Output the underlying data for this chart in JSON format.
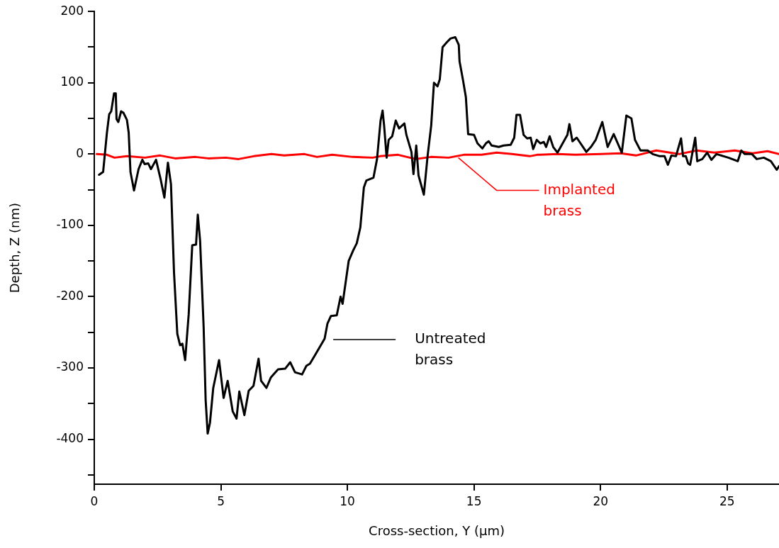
{
  "chart_data": {
    "type": "line",
    "xlabel": "Cross-section, Y (μm)",
    "ylabel": "Depth, Z (nm)",
    "xlim": [
      0,
      27.05
    ],
    "xticks": [
      0,
      5,
      10,
      15,
      20,
      25
    ],
    "ylim": [
      -463,
      200
    ],
    "yticks": [
      {
        "value": -450,
        "label": null
      },
      -400,
      {
        "value": -350,
        "label": null
      },
      -300,
      {
        "value": -250,
        "label": null
      },
      -200,
      {
        "value": -150,
        "label": null
      },
      -100,
      {
        "value": -50,
        "label": null
      },
      0,
      {
        "value": 50,
        "label": null
      },
      100,
      {
        "value": 150,
        "label": null
      },
      200
    ],
    "grid": false,
    "legend": false,
    "marker": "none",
    "line_style": "solid",
    "annotations": [
      "Untreated brass",
      {
        "text": "Implanted brass",
        "x": 14.38,
        "y": -5
      }
    ],
    "series": [
      {
        "color": "#000000",
        "x": [
          0.19,
          0.35,
          0.5,
          0.59,
          0.67,
          0.78,
          0.85,
          0.88,
          0.95,
          1.06,
          1.15,
          1.29,
          1.36,
          1.43,
          1.57,
          1.75,
          1.9,
          1.99,
          2.13,
          2.24,
          2.44,
          2.62,
          2.77,
          2.91,
          3.03,
          3.15,
          3.28,
          3.39,
          3.48,
          3.59,
          3.73,
          3.87,
          4.02,
          4.09,
          4.18,
          4.32,
          4.4,
          4.48,
          4.57,
          4.7,
          4.93,
          5.11,
          5.27,
          5.47,
          5.62,
          5.73,
          5.93,
          6.1,
          6.29,
          6.49,
          6.59,
          6.8,
          6.98,
          7.26,
          7.54,
          7.74,
          7.93,
          8.21,
          8.38,
          8.52,
          8.72,
          9.1,
          9.21,
          9.35,
          9.58,
          9.73,
          9.81,
          10.05,
          10.23,
          10.37,
          10.51,
          10.65,
          10.75,
          11.03,
          11.17,
          11.31,
          11.39,
          11.45,
          11.55,
          11.63,
          11.77,
          11.91,
          12.04,
          12.25,
          12.33,
          12.53,
          12.61,
          12.72,
          12.81,
          13.02,
          13.17,
          13.31,
          13.42,
          13.56,
          13.65,
          13.76,
          13.93,
          14.07,
          14.26,
          14.4,
          14.43,
          14.57,
          14.68,
          14.77,
          15.0,
          15.14,
          15.33,
          15.47,
          15.58,
          15.7,
          15.98,
          16.17,
          16.45,
          16.59,
          16.68,
          16.82,
          16.96,
          17.1,
          17.24,
          17.34,
          17.48,
          17.62,
          17.76,
          17.85,
          17.99,
          18.13,
          18.3,
          18.69,
          18.77,
          18.89,
          19.06,
          19.44,
          19.62,
          19.81,
          20.07,
          20.28,
          20.52,
          20.84,
          21.02,
          21.22,
          21.36,
          21.58,
          21.86,
          22.06,
          22.34,
          22.53,
          22.66,
          22.8,
          22.98,
          23.18,
          23.26,
          23.37,
          23.46,
          23.54,
          23.74,
          23.82,
          24.02,
          24.21,
          24.38,
          24.58,
          24.86,
          25.05,
          25.42,
          25.56,
          25.7,
          25.98,
          26.17,
          26.45,
          26.73,
          26.96,
          27.05
        ],
        "values": [
          -29,
          -25,
          30,
          56,
          60,
          85,
          85,
          49,
          45,
          60,
          58,
          48,
          30,
          -25,
          -51,
          -21,
          -8,
          -14,
          -13,
          -21,
          -8,
          -35,
          -61,
          -12,
          -42,
          -166,
          -252,
          -268,
          -266,
          -289,
          -225,
          -128,
          -127,
          -85,
          -121,
          -242,
          -345,
          -392,
          -377,
          -328,
          -289,
          -342,
          -318,
          -361,
          -371,
          -333,
          -366,
          -332,
          -325,
          -287,
          -318,
          -328,
          -313,
          -302,
          -301,
          -292,
          -306,
          -309,
          -297,
          -294,
          -282,
          -259,
          -238,
          -227,
          -226,
          -200,
          -210,
          -150,
          -135,
          -125,
          -103,
          -47,
          -37,
          -33,
          -7,
          47,
          61,
          40,
          -5,
          20,
          25,
          47,
          36,
          43,
          27,
          3,
          -28,
          12,
          -30,
          -57,
          -2,
          40,
          100,
          95,
          105,
          150,
          157,
          162,
          164,
          153,
          130,
          103,
          80,
          28,
          27,
          15,
          8,
          15,
          18,
          12,
          10,
          12,
          13,
          23,
          55,
          55,
          27,
          22,
          23,
          7,
          20,
          15,
          17,
          10,
          25,
          10,
          2,
          27,
          42,
          18,
          23,
          3,
          10,
          20,
          45,
          10,
          28,
          2,
          54,
          50,
          20,
          5,
          5,
          0,
          -3,
          -3,
          -15,
          -2,
          -3,
          22,
          -3,
          -3,
          -13,
          -15,
          23,
          -10,
          -7,
          2,
          -8,
          0,
          -3,
          -5,
          -10,
          5,
          0,
          0,
          -7,
          -5,
          -10,
          -22,
          -17
        ]
      },
      {
        "color": "#ff0000",
        "x": [
          0.1,
          0.5,
          0.8,
          1.3,
          2,
          2.6,
          3.2,
          4,
          4.5,
          5.2,
          5.7,
          6.3,
          7,
          7.5,
          8.3,
          8.8,
          9.4,
          10.2,
          11,
          11.3,
          12,
          12.7,
          13.3,
          14,
          14.6,
          15.3,
          15.9,
          16.5,
          17.2,
          17.5,
          18.3,
          19,
          20,
          20.8,
          21.4,
          22.2,
          23.1,
          23.8,
          24.5,
          25.3,
          26,
          26.6,
          27.05
        ],
        "values": [
          0,
          -1,
          -5,
          -3,
          -5,
          -2,
          -6,
          -4,
          -6,
          -5,
          -7,
          -3,
          0,
          -2,
          0,
          -4,
          -1,
          -4,
          -5,
          -3,
          -1,
          -7,
          -4,
          -5,
          -1,
          -1,
          2,
          0,
          -3,
          -1,
          0,
          -1,
          0,
          1,
          -2,
          5,
          0,
          5,
          2,
          5,
          1,
          4,
          0
        ]
      }
    ]
  }
}
